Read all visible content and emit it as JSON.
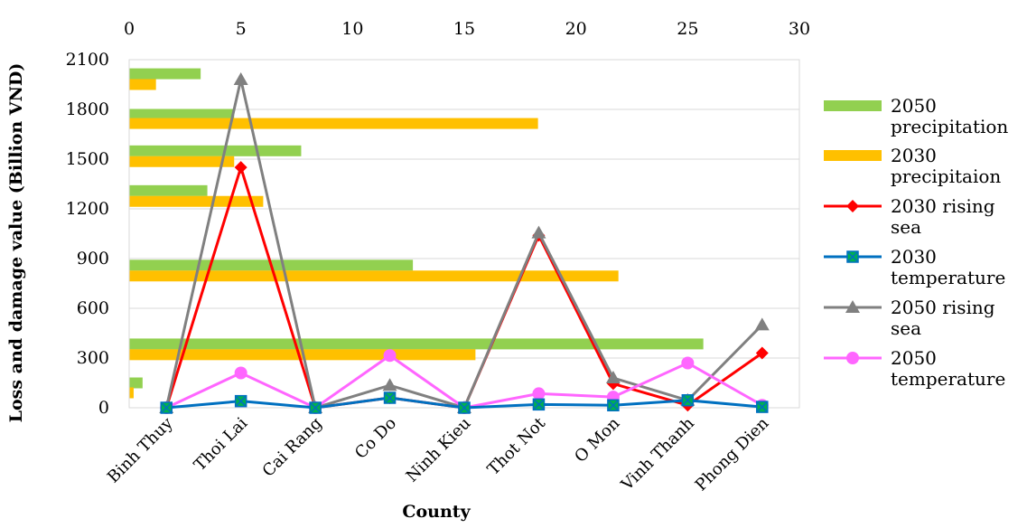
{
  "chart_data": {
    "type": "bar+line",
    "title": "",
    "xlabel": "County",
    "ylabel": "Loss and damage value (Billion VND)",
    "grid": true,
    "legend_position": "right",
    "categories": [
      "Binh Thuy",
      "Thoi Lai",
      "Cai Rang",
      "Co Do",
      "Ninh Kieu",
      "Thot Not",
      "O Mon",
      "Vinh Thanh",
      "Phong Dien"
    ],
    "primary_y": {
      "ylim": [
        0,
        2100
      ],
      "ticks": [
        "0",
        "300",
        "600",
        "900",
        "1200",
        "1500",
        "1800",
        "2100"
      ]
    },
    "secondary_x": {
      "xlim": [
        0,
        30
      ],
      "ticks": [
        "0",
        "5",
        "10",
        "15",
        "20",
        "25",
        "30"
      ]
    },
    "bar_series": [
      {
        "name": "2050 precipitation",
        "color": "#92D050",
        "values": [
          0.6,
          25.7,
          0,
          12.7,
          0,
          7.7,
          4.7,
          3.5,
          3.2
        ],
        "y_positions": [
          150,
          385,
          0,
          860,
          0,
          1550,
          1770,
          1310,
          2015
        ]
      },
      {
        "name": "2030 precipitaion",
        "color": "#FFC000",
        "values": [
          0.2,
          15.5,
          0,
          21.9,
          0,
          4.7,
          18.3,
          6.0,
          1.2
        ],
        "y_positions": [
          90,
          320,
          0,
          795,
          0,
          1485,
          1715,
          1245,
          1950
        ]
      }
    ],
    "line_series": [
      {
        "name": "2030 rising sea",
        "color": "#FF0000",
        "marker": "diamond",
        "values": [
          0,
          1450,
          0,
          60,
          0,
          1040,
          145,
          15,
          330
        ]
      },
      {
        "name": "2030 temperature",
        "color": "#0070C0",
        "marker": "square-x",
        "marker_fill": "#00B050",
        "values": [
          0,
          40,
          0,
          60,
          0,
          20,
          15,
          45,
          5
        ]
      },
      {
        "name": "2050 rising sea",
        "color": "#808080",
        "marker": "triangle",
        "values": [
          0,
          1980,
          0,
          135,
          0,
          1055,
          180,
          45,
          500
        ]
      },
      {
        "name": "2050 temperature",
        "color": "#FF66FF",
        "marker": "circle",
        "values": [
          0,
          210,
          0,
          315,
          0,
          85,
          65,
          270,
          15
        ]
      }
    ],
    "legend": [
      {
        "id": "l1",
        "lines": [
          "2050",
          "precipitation"
        ]
      },
      {
        "id": "l2",
        "lines": [
          "2030",
          "precipitaion"
        ]
      },
      {
        "id": "l3",
        "lines": [
          "2030 rising",
          "sea"
        ]
      },
      {
        "id": "l4",
        "lines": [
          "2030",
          "temperature"
        ]
      },
      {
        "id": "l5",
        "lines": [
          "2050 rising",
          "sea"
        ]
      },
      {
        "id": "l6",
        "lines": [
          "2050",
          "temperature"
        ]
      }
    ]
  }
}
